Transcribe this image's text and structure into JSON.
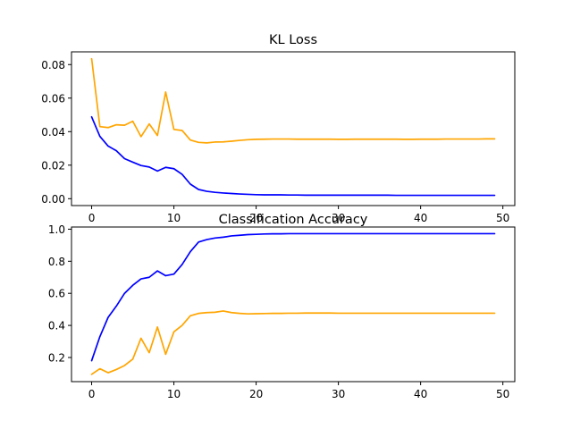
{
  "chart_data": [
    {
      "type": "line",
      "title": "KL Loss",
      "xlabel": "",
      "ylabel": "",
      "xlim": [
        -2.45,
        51.45
      ],
      "ylim": [
        -0.0041,
        0.0876
      ],
      "xticks": [
        0,
        10,
        20,
        30,
        40,
        50
      ],
      "yticks": [
        0.0,
        0.02,
        0.04,
        0.06,
        0.08
      ],
      "ytick_labels": [
        "0.00",
        "0.02",
        "0.04",
        "0.06",
        "0.08"
      ],
      "grid": false,
      "x": [
        0,
        1,
        2,
        3,
        4,
        5,
        6,
        7,
        8,
        9,
        10,
        11,
        12,
        13,
        14,
        15,
        16,
        17,
        18,
        19,
        20,
        21,
        22,
        23,
        24,
        25,
        26,
        27,
        28,
        29,
        30,
        31,
        32,
        33,
        34,
        35,
        36,
        37,
        38,
        39,
        40,
        41,
        42,
        43,
        44,
        45,
        46,
        47,
        48,
        49
      ],
      "series": [
        {
          "color": "#ffa500",
          "values": [
            0.0835,
            0.043,
            0.0424,
            0.0441,
            0.0438,
            0.0462,
            0.037,
            0.0446,
            0.0377,
            0.0636,
            0.0413,
            0.0407,
            0.035,
            0.0336,
            0.0333,
            0.0338,
            0.0339,
            0.0343,
            0.0348,
            0.0352,
            0.0354,
            0.0355,
            0.0356,
            0.0356,
            0.0356,
            0.0355,
            0.0355,
            0.0355,
            0.0355,
            0.0355,
            0.0354,
            0.0354,
            0.0355,
            0.0355,
            0.0355,
            0.0355,
            0.0355,
            0.0355,
            0.0354,
            0.0354,
            0.0355,
            0.0355,
            0.0355,
            0.0356,
            0.0356,
            0.0356,
            0.0356,
            0.0356,
            0.0357,
            0.0357
          ]
        },
        {
          "color": "#0000ff",
          "values": [
            0.0488,
            0.0372,
            0.0314,
            0.0286,
            0.0239,
            0.0218,
            0.0198,
            0.0189,
            0.0165,
            0.0187,
            0.0179,
            0.0145,
            0.0087,
            0.0055,
            0.0044,
            0.0038,
            0.0034,
            0.0031,
            0.0028,
            0.0026,
            0.0024,
            0.0023,
            0.0023,
            0.0023,
            0.0022,
            0.0022,
            0.0021,
            0.0021,
            0.0021,
            0.0021,
            0.0021,
            0.0021,
            0.0021,
            0.0021,
            0.0021,
            0.0021,
            0.0021,
            0.002,
            0.002,
            0.002,
            0.002,
            0.002,
            0.002,
            0.002,
            0.002,
            0.002,
            0.002,
            0.002,
            0.002,
            0.002
          ]
        }
      ]
    },
    {
      "type": "line",
      "title": "Classification Accuracy",
      "xlabel": "",
      "ylabel": "",
      "xlim": [
        -2.45,
        51.45
      ],
      "ylim": [
        0.0495,
        1.0135
      ],
      "xticks": [
        0,
        10,
        20,
        30,
        40,
        50
      ],
      "yticks": [
        0.2,
        0.4,
        0.6,
        0.8,
        1.0
      ],
      "ytick_labels": [
        "0.2",
        "0.4",
        "0.6",
        "0.8",
        "1.0"
      ],
      "grid": false,
      "x": [
        0,
        1,
        2,
        3,
        4,
        5,
        6,
        7,
        8,
        9,
        10,
        11,
        12,
        13,
        14,
        15,
        16,
        17,
        18,
        19,
        20,
        21,
        22,
        23,
        24,
        25,
        26,
        27,
        28,
        29,
        30,
        31,
        32,
        33,
        34,
        35,
        36,
        37,
        38,
        39,
        40,
        41,
        42,
        43,
        44,
        45,
        46,
        47,
        48,
        49
      ],
      "series": [
        {
          "color": "#0000ff",
          "values": [
            0.18,
            0.33,
            0.45,
            0.52,
            0.6,
            0.65,
            0.69,
            0.7,
            0.74,
            0.71,
            0.72,
            0.78,
            0.86,
            0.92,
            0.935,
            0.945,
            0.95,
            0.958,
            0.962,
            0.966,
            0.968,
            0.97,
            0.971,
            0.971,
            0.972,
            0.972,
            0.972,
            0.972,
            0.972,
            0.972,
            0.972,
            0.972,
            0.972,
            0.972,
            0.972,
            0.972,
            0.972,
            0.972,
            0.972,
            0.972,
            0.972,
            0.972,
            0.972,
            0.972,
            0.972,
            0.972,
            0.972,
            0.972,
            0.972,
            0.972
          ]
        },
        {
          "color": "#ffa500",
          "values": [
            0.095,
            0.13,
            0.105,
            0.125,
            0.15,
            0.19,
            0.32,
            0.23,
            0.39,
            0.22,
            0.36,
            0.4,
            0.46,
            0.475,
            0.48,
            0.482,
            0.49,
            0.48,
            0.475,
            0.472,
            0.473,
            0.474,
            0.475,
            0.475,
            0.476,
            0.476,
            0.477,
            0.477,
            0.477,
            0.477,
            0.476,
            0.476,
            0.476,
            0.476,
            0.476,
            0.476,
            0.476,
            0.476,
            0.476,
            0.476,
            0.476,
            0.476,
            0.476,
            0.476,
            0.476,
            0.476,
            0.476,
            0.476,
            0.476,
            0.476
          ]
        }
      ]
    }
  ]
}
